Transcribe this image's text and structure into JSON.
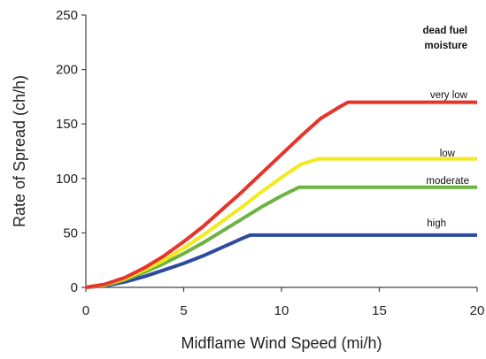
{
  "chart_data": {
    "type": "line",
    "xlabel": "Midflame Wind Speed (mi/h)",
    "ylabel": "Rate of Spread (ch/h)",
    "xlim": [
      0,
      20
    ],
    "ylim": [
      0,
      250
    ],
    "xticks": [
      0,
      5,
      10,
      15,
      20
    ],
    "yticks": [
      0,
      50,
      100,
      150,
      200,
      250
    ],
    "grid": false,
    "legend_title_lines": [
      "dead fuel",
      "moisture"
    ],
    "series": [
      {
        "name": "very low",
        "color": "#e8332a",
        "x": [
          0,
          1,
          2,
          3,
          4,
          5,
          6,
          7,
          8,
          9,
          10,
          11,
          12,
          13,
          13.4,
          20
        ],
        "y": [
          0,
          3,
          9,
          18,
          29,
          42,
          56,
          72,
          88,
          105,
          122,
          139,
          155,
          166,
          170,
          170
        ]
      },
      {
        "name": "low",
        "color": "#f2ea1f",
        "x": [
          0,
          1,
          2,
          3,
          4,
          5,
          6,
          7,
          8,
          9,
          10,
          11,
          11.9,
          20
        ],
        "y": [
          0,
          2.5,
          8,
          16,
          25,
          36,
          48,
          61,
          74,
          88,
          101,
          113,
          118,
          118
        ]
      },
      {
        "name": "moderate",
        "color": "#6db33f",
        "x": [
          0,
          1,
          2,
          3,
          4,
          5,
          6,
          7,
          8,
          9,
          10,
          10.9,
          20
        ],
        "y": [
          0,
          2,
          7,
          14,
          22,
          31,
          41,
          52,
          63,
          74,
          84,
          92,
          92
        ]
      },
      {
        "name": "high",
        "color": "#2d4aa0",
        "x": [
          0,
          1,
          2,
          3,
          4,
          5,
          6,
          7,
          8,
          8.4,
          20
        ],
        "y": [
          0,
          1.5,
          5,
          10,
          16,
          22,
          29,
          37,
          45,
          48,
          48
        ]
      }
    ]
  }
}
